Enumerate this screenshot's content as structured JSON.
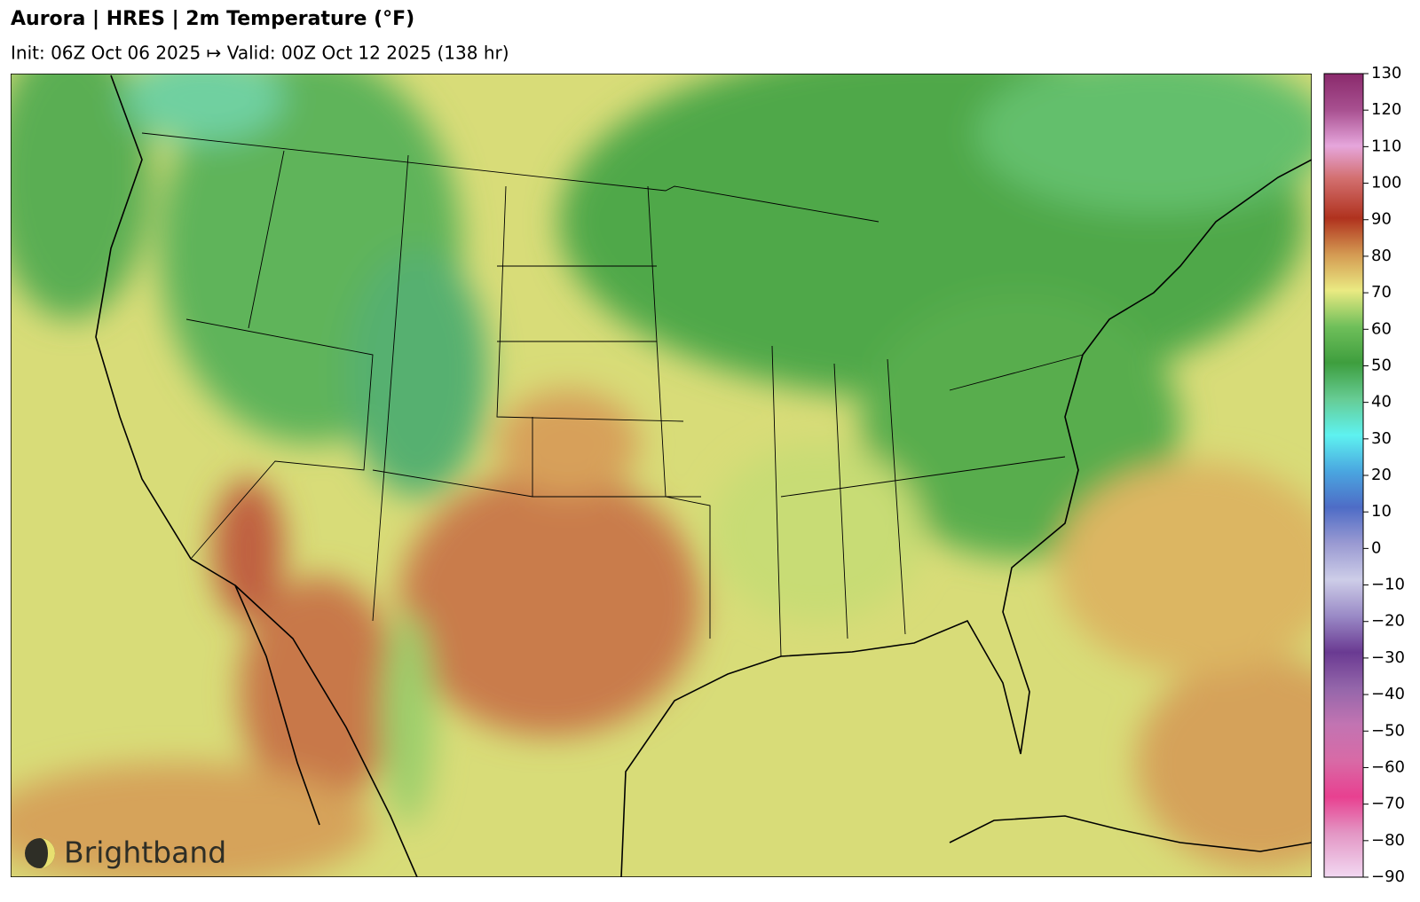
{
  "header": {
    "title": "Aurora | HRES | 2m Temperature (°F)",
    "subtitle": "Init: 06Z Oct 06 2025 ↦ Valid: 00Z Oct 12 2025 (138 hr)"
  },
  "colorbar": {
    "lim": [
      -90,
      130
    ],
    "ticks": [
      130,
      120,
      110,
      100,
      90,
      80,
      70,
      60,
      50,
      40,
      30,
      20,
      10,
      0,
      {
        "value": -10,
        "label": "−10"
      },
      {
        "value": -20,
        "label": "−20"
      },
      {
        "value": -30,
        "label": "−30"
      },
      {
        "value": -40,
        "label": "−40"
      },
      {
        "value": -50,
        "label": "−50"
      },
      {
        "value": -60,
        "label": "−60"
      },
      {
        "value": -70,
        "label": "−70"
      },
      {
        "value": -80,
        "label": "−80"
      },
      {
        "value": -90,
        "label": "−90"
      }
    ]
  },
  "logo": {
    "text": "Brightband"
  }
}
